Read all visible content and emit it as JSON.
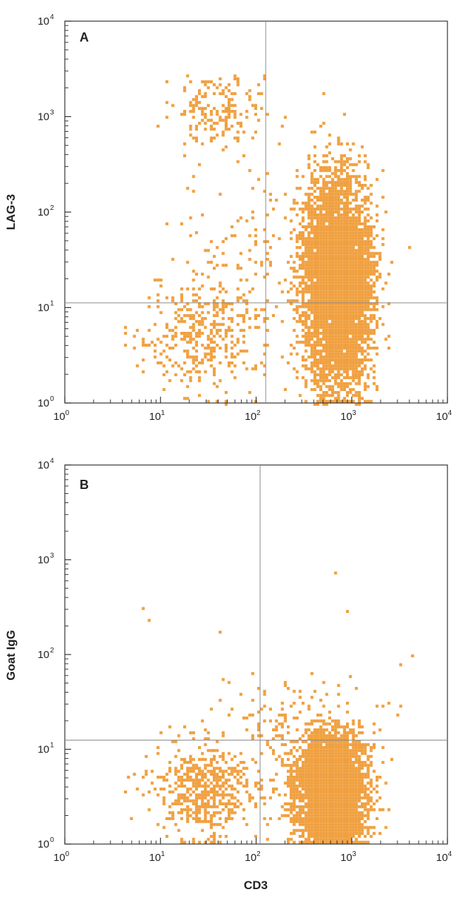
{
  "colors": {
    "dots": "#f0a040",
    "frame": "#333333",
    "gate": "#8a8a8a"
  },
  "chart_data": [
    {
      "type": "scatter",
      "panel_label": "A",
      "xlabel": "",
      "ylabel": "LAG-3",
      "xscale": "log",
      "yscale": "log",
      "xlim": [
        1,
        10000
      ],
      "ylim": [
        1,
        10000
      ],
      "xticks": [
        1,
        10,
        100,
        1000,
        10000
      ],
      "yticks": [
        1,
        10,
        100,
        1000,
        10000
      ],
      "tick_base": "10",
      "tick_exponents": [
        "0",
        "1",
        "2",
        "3",
        "4"
      ],
      "quadrant_gates": {
        "x": 126,
        "y": 11.2
      },
      "populations": [
        {
          "x_center": 700,
          "y_center": 18,
          "x_spread": 0.18,
          "y_spread": 0.55,
          "y_floor": 1,
          "y_ceiling": 1800,
          "count": 5200
        },
        {
          "x_center": 30,
          "y_center": 5,
          "x_spread": 0.33,
          "y_spread": 0.28,
          "y_floor": 1,
          "y_ceiling": 40,
          "count": 380
        },
        {
          "x_center": 40,
          "y_center": 1200,
          "x_spread": 0.25,
          "y_spread": 0.22,
          "y_floor": 300,
          "y_ceiling": 2800,
          "count": 190
        },
        {
          "x_center": 70,
          "y_center": 40,
          "x_spread": 0.35,
          "y_spread": 0.45,
          "y_floor": 8,
          "y_ceiling": 400,
          "count": 110
        }
      ]
    },
    {
      "type": "scatter",
      "panel_label": "B",
      "xlabel": "CD3",
      "ylabel": "Goat IgG",
      "xscale": "log",
      "yscale": "log",
      "xlim": [
        1,
        10000
      ],
      "ylim": [
        1,
        10000
      ],
      "xticks": [
        1,
        10,
        100,
        1000,
        10000
      ],
      "yticks": [
        1,
        10,
        100,
        1000,
        10000
      ],
      "tick_base": "10",
      "tick_exponents": [
        "0",
        "1",
        "2",
        "3",
        "4"
      ],
      "quadrant_gates": {
        "x": 110,
        "y": 12.5
      },
      "populations": [
        {
          "x_center": 600,
          "y_center": 3.5,
          "x_spread": 0.18,
          "y_spread": 0.3,
          "y_floor": 1.05,
          "y_ceiling": 20,
          "count": 4600
        },
        {
          "x_center": 30,
          "y_center": 3.8,
          "x_spread": 0.3,
          "y_spread": 0.25,
          "y_floor": 1.05,
          "y_ceiling": 18,
          "count": 520
        },
        {
          "x_center": 250,
          "y_center": 20,
          "x_spread": 0.4,
          "y_spread": 0.25,
          "y_floor": 8,
          "y_ceiling": 80,
          "count": 160
        }
      ],
      "outliers": [
        {
          "x": 700,
          "y": 750
        },
        {
          "x": 920,
          "y": 290
        },
        {
          "x": 6.5,
          "y": 310
        },
        {
          "x": 7.8,
          "y": 230
        },
        {
          "x": 43,
          "y": 175
        },
        {
          "x": 4400,
          "y": 100
        },
        {
          "x": 3300,
          "y": 80
        }
      ]
    }
  ]
}
